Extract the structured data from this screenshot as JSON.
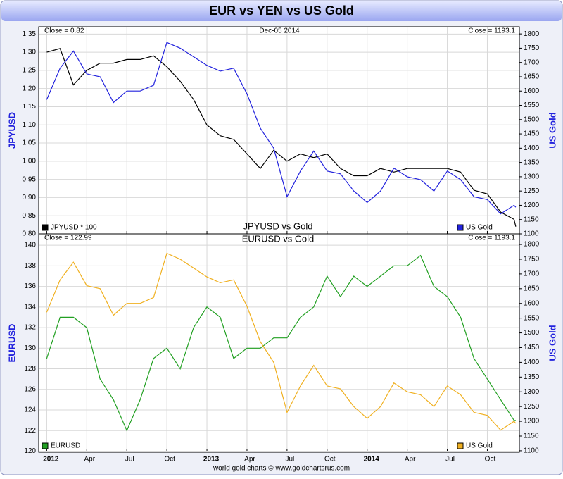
{
  "header": {
    "title": "EUR vs YEN vs US Gold"
  },
  "footer": "world gold charts © www.goldchartsrus.com",
  "chart_data": [
    {
      "type": "line",
      "title": "JPYUSD vs Gold",
      "close_left": "Close = 0.82",
      "date": "Dec-05 2014",
      "close_right": "Close = 1193.1",
      "ylabel": "JPYUSD",
      "y2label": "US Gold",
      "x": [
        0,
        1,
        2,
        3,
        4,
        5,
        6,
        7,
        8,
        9,
        10,
        11,
        12,
        13,
        14,
        15,
        16,
        17,
        18,
        19,
        20,
        21,
        22,
        23,
        24,
        25,
        26,
        27,
        28,
        29,
        30,
        31,
        32,
        33,
        34,
        35,
        35.13
      ],
      "series": [
        {
          "name": "JPYUSD * 100",
          "color": "#000000",
          "axis": "y",
          "values": [
            1.3,
            1.31,
            1.21,
            1.25,
            1.27,
            1.27,
            1.28,
            1.28,
            1.29,
            1.26,
            1.22,
            1.17,
            1.1,
            1.07,
            1.06,
            1.02,
            0.98,
            1.03,
            1.0,
            1.02,
            1.01,
            1.02,
            0.98,
            0.96,
            0.96,
            0.98,
            0.97,
            0.98,
            0.98,
            0.98,
            0.98,
            0.97,
            0.92,
            0.91,
            0.86,
            0.84,
            0.82
          ]
        },
        {
          "name": "US Gold",
          "color": "#2222dd",
          "axis": "y2",
          "values": [
            1570,
            1680,
            1740,
            1660,
            1650,
            1560,
            1600,
            1600,
            1620,
            1770,
            1750,
            1720,
            1690,
            1670,
            1680,
            1590,
            1470,
            1400,
            1230,
            1320,
            1390,
            1320,
            1310,
            1250,
            1210,
            1250,
            1330,
            1300,
            1290,
            1250,
            1320,
            1290,
            1230,
            1220,
            1170,
            1200,
            1193.1
          ]
        }
      ],
      "xlim": [
        -0.6,
        35.4
      ],
      "xticks": [
        0,
        3,
        6,
        9,
        12,
        15,
        18,
        21,
        24,
        27,
        30,
        33
      ],
      "ylim": [
        0.8,
        1.37
      ],
      "yticks": [
        {
          "value": 0.8,
          "label": "0.80"
        },
        {
          "value": 0.85,
          "label": "0.85"
        },
        {
          "value": 0.9,
          "label": "0.90"
        },
        {
          "value": 0.95,
          "label": "0.95"
        },
        {
          "value": 1.0,
          "label": "1.00"
        },
        {
          "value": 1.05,
          "label": "1.05"
        },
        {
          "value": 1.1,
          "label": "1.10"
        },
        {
          "value": 1.15,
          "label": "1.15"
        },
        {
          "value": 1.2,
          "label": "1.20"
        },
        {
          "value": 1.25,
          "label": "1.25"
        },
        {
          "value": 1.3,
          "label": "1.30"
        },
        {
          "value": 1.35,
          "label": "1.35"
        }
      ],
      "y2lim": [
        1100,
        1825
      ],
      "y2ticks": [
        1100,
        1150,
        1200,
        1250,
        1300,
        1350,
        1400,
        1450,
        1500,
        1550,
        1600,
        1650,
        1700,
        1750,
        1800
      ],
      "grid": true
    },
    {
      "type": "line",
      "title": "EURUSD vs Gold",
      "close_left": "Close = 122.99",
      "close_right": "Close = 1193.1",
      "ylabel": "EURUSD",
      "y2label": "US Gold",
      "x": [
        0,
        1,
        2,
        3,
        4,
        5,
        6,
        7,
        8,
        9,
        10,
        11,
        12,
        13,
        14,
        15,
        16,
        17,
        18,
        19,
        20,
        21,
        22,
        23,
        24,
        25,
        26,
        27,
        28,
        29,
        30,
        31,
        32,
        33,
        34,
        35,
        35.13
      ],
      "series": [
        {
          "name": "EURUSD",
          "color": "#22a022",
          "axis": "y",
          "values": [
            129,
            133,
            133,
            132,
            127,
            125,
            122,
            125,
            129,
            130,
            128,
            132,
            134,
            133,
            129,
            130,
            130,
            131,
            131,
            133,
            134,
            137,
            135,
            137,
            136,
            137,
            138,
            138,
            139,
            136,
            135,
            133,
            129,
            127,
            125,
            123,
            122.99
          ]
        },
        {
          "name": "US Gold",
          "color": "#f0b020",
          "axis": "y2",
          "values": [
            1570,
            1680,
            1740,
            1660,
            1650,
            1560,
            1600,
            1600,
            1620,
            1770,
            1750,
            1720,
            1690,
            1670,
            1680,
            1590,
            1470,
            1400,
            1230,
            1320,
            1390,
            1320,
            1310,
            1250,
            1210,
            1250,
            1330,
            1300,
            1290,
            1250,
            1320,
            1290,
            1230,
            1220,
            1170,
            1200,
            1193.1
          ]
        }
      ],
      "xlim": [
        -0.6,
        35.4
      ],
      "xticks": [
        {
          "value": 0,
          "label": "2012"
        },
        {
          "value": 3,
          "label": "Apr"
        },
        {
          "value": 6,
          "label": "Jul"
        },
        {
          "value": 9,
          "label": "Oct"
        },
        {
          "value": 12,
          "label": "2013"
        },
        {
          "value": 15,
          "label": "Apr"
        },
        {
          "value": 18,
          "label": "Jul"
        },
        {
          "value": 21,
          "label": "Oct"
        },
        {
          "value": 24,
          "label": "2014"
        },
        {
          "value": 27,
          "label": "Apr"
        },
        {
          "value": 30,
          "label": "Jul"
        },
        {
          "value": 33,
          "label": "Oct"
        }
      ],
      "ylim": [
        119.9,
        141.1
      ],
      "yticks": [
        120,
        122,
        124,
        126,
        128,
        130,
        132,
        134,
        136,
        138,
        140
      ],
      "y2lim": [
        1095,
        1836
      ],
      "y2ticks": [
        1100,
        1150,
        1200,
        1250,
        1300,
        1350,
        1400,
        1450,
        1500,
        1550,
        1600,
        1650,
        1700,
        1750,
        1800
      ],
      "grid": true
    }
  ]
}
